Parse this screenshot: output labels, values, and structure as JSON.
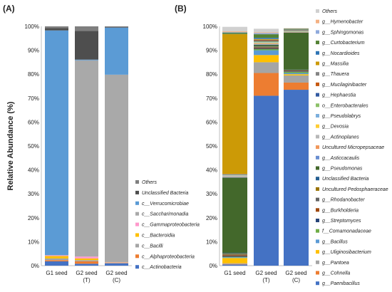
{
  "chart_data": [
    {
      "panel": "(A)",
      "type": "bar",
      "stacked": true,
      "ylabel": "Relative Abundance (%)",
      "ylim": [
        0,
        100
      ],
      "yticks": [
        "0%",
        "10%",
        "20%",
        "30%",
        "40%",
        "50%",
        "60%",
        "70%",
        "80%",
        "90%",
        "100%"
      ],
      "categories": [
        "G1 seed",
        "G2 seed",
        "G2 seed"
      ],
      "category_sublabels": [
        "",
        "(T)",
        "(C)"
      ],
      "legend_position": "right",
      "series": [
        {
          "name": "c__Actinobacteria",
          "color": "#4472c4",
          "values": [
            1.8,
            0.8,
            1.0
          ]
        },
        {
          "name": "c__Alphaproteobacteria",
          "color": "#ed7d31",
          "values": [
            0.5,
            1.0,
            0.1
          ]
        },
        {
          "name": "c__Bacilli",
          "color": "#a5a5a5",
          "values": [
            0.7,
            0.5,
            0.2
          ]
        },
        {
          "name": "c__Bacteroidia",
          "color": "#ffc000",
          "values": [
            1.0,
            0.7,
            0.1
          ]
        },
        {
          "name": "c__Gammaproteobacteria",
          "color": "#ff99cc",
          "values": [
            0.3,
            0.8,
            0.1
          ]
        },
        {
          "name": "c__Saccharimonadia",
          "color": "#a9a9a9",
          "values": [
            0.1,
            82.0,
            78.3
          ]
        },
        {
          "name": "c__Verrucomicrobiae",
          "color": "#5b9bd5",
          "values": [
            93.9,
            0.3,
            19.7
          ]
        },
        {
          "name": "Unclassified Bacteria",
          "color": "#4e4e4e",
          "values": [
            1.0,
            12.0,
            0.2
          ]
        },
        {
          "name": "Others",
          "color": "#7f7f7f",
          "values": [
            0.7,
            1.9,
            0.3
          ]
        }
      ]
    },
    {
      "panel": "(B)",
      "type": "bar",
      "stacked": true,
      "ylim": [
        0,
        100
      ],
      "yticks": [
        "0%",
        "10%",
        "20%",
        "30%",
        "40%",
        "50%",
        "60%",
        "70%",
        "80%",
        "90%",
        "100%"
      ],
      "categories": [
        "G1 seed",
        "G2 seed",
        "G2 seed"
      ],
      "category_sublabels": [
        "",
        "(T)",
        "(C)"
      ],
      "legend_position": "right",
      "series": [
        {
          "name": "g__Paenibacillus",
          "color": "#4472c4",
          "values": [
            0.5,
            71.0,
            73.5
          ]
        },
        {
          "name": "g__Cohnella",
          "color": "#ed7d31",
          "values": [
            0.2,
            9.5,
            3.0
          ]
        },
        {
          "name": "g__Pantoea",
          "color": "#a5a5a5",
          "values": [
            0.3,
            4.5,
            3.0
          ]
        },
        {
          "name": "g__Uliginosibacterium",
          "color": "#ffc000",
          "values": [
            2.2,
            3.0,
            0.5
          ]
        },
        {
          "name": "g__Bacillus",
          "color": "#5b9bd5",
          "values": [
            0.3,
            2.0,
            0.5
          ]
        },
        {
          "name": "f__Comamonadaceae",
          "color": "#70ad47",
          "values": [
            0.2,
            0.5,
            0.5
          ]
        },
        {
          "name": "g__Streptomyces",
          "color": "#264478",
          "values": [
            0.3,
            0.3,
            0.2
          ]
        },
        {
          "name": "g__Burkholderia",
          "color": "#9e480e",
          "values": [
            0.4,
            0.3,
            0.2
          ]
        },
        {
          "name": "g__Rhodanobacter",
          "color": "#636363",
          "values": [
            0.3,
            0.3,
            0.2
          ]
        },
        {
          "name": "Uncultured Pedosphaeraceae",
          "color": "#997300",
          "values": [
            0.3,
            0.2,
            0.1
          ]
        },
        {
          "name": "Unclassified Bacteria",
          "color": "#255e91",
          "values": [
            0.3,
            0.2,
            0.2
          ]
        },
        {
          "name": "g__Pseudomonas",
          "color": "#43682b",
          "values": [
            31.5,
            0.5,
            15.5
          ]
        },
        {
          "name": "g__Asticcacaulis",
          "color": "#698ed0",
          "values": [
            0.2,
            0.2,
            0.1
          ]
        },
        {
          "name": "Uncultured Micropepsaceae",
          "color": "#f1975a",
          "values": [
            0.1,
            0.2,
            0.1
          ]
        },
        {
          "name": "g__Actinoplanes",
          "color": "#b7b7b7",
          "values": [
            0.5,
            0.3,
            0.2
          ]
        },
        {
          "name": "g__Devosia",
          "color": "#ffcd33",
          "values": [
            0.1,
            0.2,
            0.1
          ]
        },
        {
          "name": "g__Pseudolabrys",
          "color": "#7cafdd",
          "values": [
            0.2,
            0.2,
            0.2
          ]
        },
        {
          "name": "o__Enterobacterales",
          "color": "#8cc168",
          "values": [
            0.1,
            0.3,
            0.1
          ]
        },
        {
          "name": "g__Hephaestia",
          "color": "#335aa1",
          "values": [
            0.1,
            0.2,
            0.1
          ]
        },
        {
          "name": "g__Mucilaginibacter",
          "color": "#c65911",
          "values": [
            0.1,
            0.3,
            0.1
          ]
        },
        {
          "name": "g__Thauera",
          "color": "#848484",
          "values": [
            0.1,
            0.2,
            0.1
          ]
        },
        {
          "name": "g__Massilia",
          "color": "#cc9a06",
          "values": [
            58.5,
            0.3,
            0.1
          ]
        },
        {
          "name": "g__Nocardioides",
          "color": "#2f75b5",
          "values": [
            0.1,
            0.5,
            0.1
          ]
        },
        {
          "name": "g__Curtobacterium",
          "color": "#548235",
          "values": [
            0.5,
            1.5,
            0.3
          ]
        },
        {
          "name": "g__Sphingomonas",
          "color": "#8faadc",
          "values": [
            0.2,
            0.5,
            0.1
          ]
        },
        {
          "name": "g__Hymenobacter",
          "color": "#f4b183",
          "values": [
            0.3,
            0.3,
            0.1
          ]
        },
        {
          "name": "Others",
          "color": "#d0d0d0",
          "values": [
            1.9,
            1.5,
            0.0
          ]
        }
      ]
    }
  ]
}
